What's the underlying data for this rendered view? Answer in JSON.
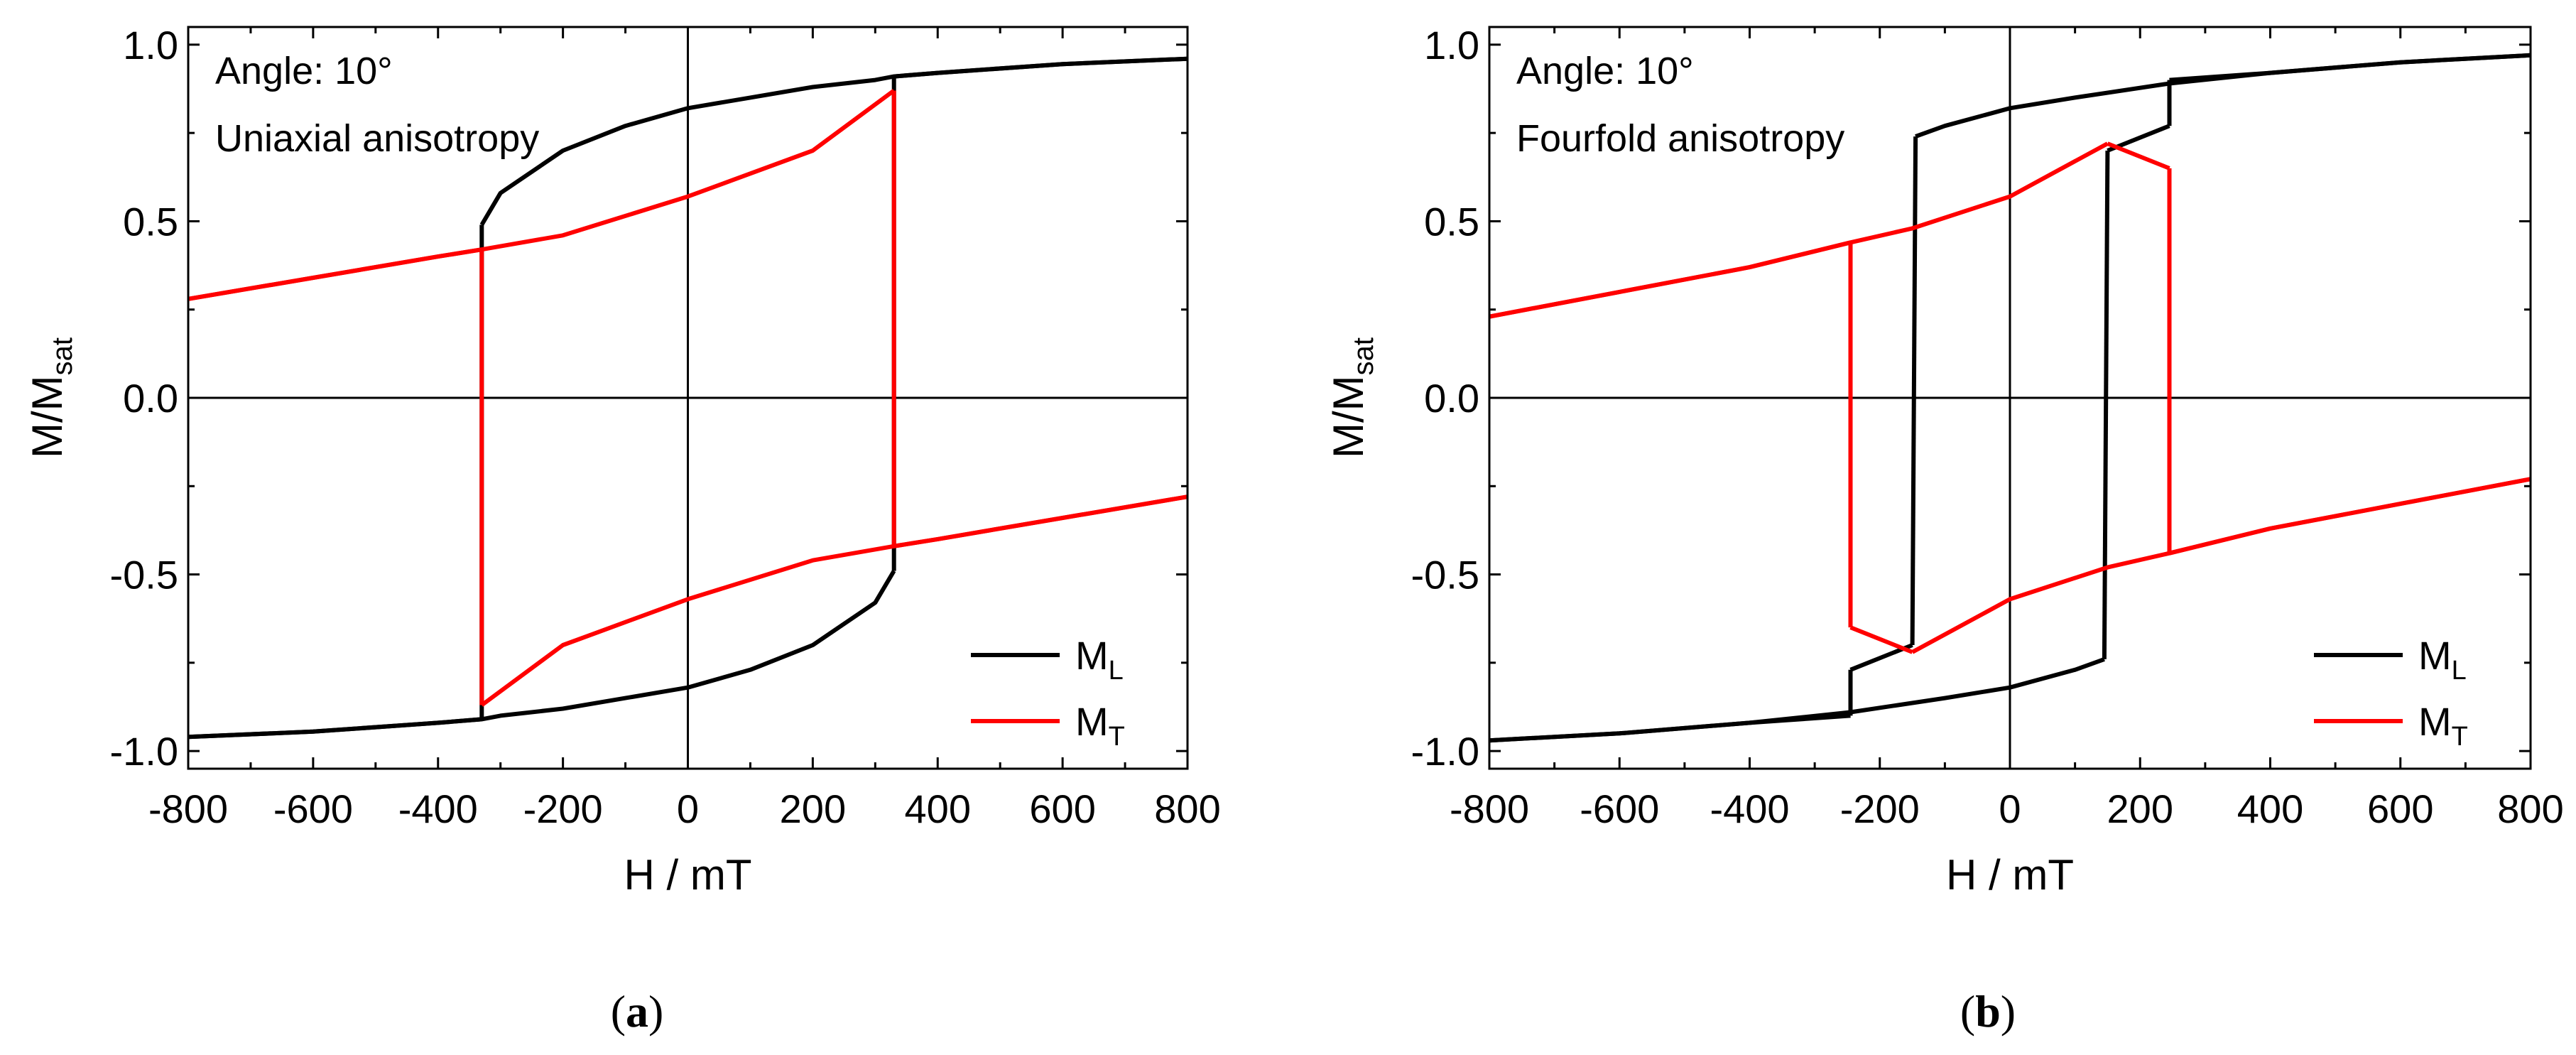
{
  "chart_data": [
    {
      "type": "line",
      "panel": "a",
      "caption_letter": "a",
      "annotation_lines": [
        "Angle: 10°",
        "Uniaxial anisotropy"
      ],
      "xlabel": "H / mT",
      "ylabel": "M/M",
      "ylabel_sub": "sat",
      "xlim": [
        -800,
        800
      ],
      "ylim": [
        -1.05,
        1.05
      ],
      "xticks": [
        -800,
        -600,
        -400,
        -200,
        0,
        200,
        400,
        600,
        800
      ],
      "xtick_labels": [
        "-800",
        "-600",
        "-400",
        "-200",
        "0",
        "200",
        "400",
        "600",
        "800"
      ],
      "yticks": [
        -1.0,
        -0.5,
        0.0,
        0.5,
        1.0
      ],
      "ytick_labels": [
        "-1.0",
        "-0.5",
        "0.0",
        "0.5",
        "1.0"
      ],
      "reference_lines": {
        "x": 0,
        "y": 0
      },
      "legend": {
        "position": "bottom-right"
      },
      "series": [
        {
          "name": "M",
          "name_sub": "L",
          "color": "#000000",
          "branches": [
            {
              "x": [
                800,
                600,
                400,
                330,
                300,
                200,
                100,
                0,
                -100,
                -200,
                -300,
                -330
              ],
              "y": [
                0.96,
                0.945,
                0.92,
                0.91,
                0.9,
                0.88,
                0.85,
                0.82,
                0.77,
                0.7,
                0.58,
                0.49
              ]
            },
            {
              "x": [
                -330,
                -330
              ],
              "y": [
                0.49,
                -0.91
              ]
            },
            {
              "x": [
                -330,
                -400,
                -600,
                -800
              ],
              "y": [
                -0.91,
                -0.92,
                -0.945,
                -0.96
              ]
            },
            {
              "x": [
                -800,
                -600,
                -400,
                -330,
                -300,
                -200,
                -100,
                0,
                100,
                200,
                300,
                330
              ],
              "y": [
                -0.96,
                -0.945,
                -0.92,
                -0.91,
                -0.9,
                -0.88,
                -0.85,
                -0.82,
                -0.77,
                -0.7,
                -0.58,
                -0.49
              ]
            },
            {
              "x": [
                330,
                330
              ],
              "y": [
                -0.49,
                0.91
              ]
            },
            {
              "x": [
                330,
                400,
                600,
                800
              ],
              "y": [
                0.91,
                0.92,
                0.945,
                0.96
              ]
            }
          ]
        },
        {
          "name": "M",
          "name_sub": "T",
          "color": "#ff0000",
          "branches": [
            {
              "x": [
                -800,
                -600,
                -400,
                -330,
                -200,
                0,
                200,
                330
              ],
              "y": [
                0.28,
                0.34,
                0.4,
                0.42,
                0.46,
                0.57,
                0.7,
                0.87
              ]
            },
            {
              "x": [
                330,
                330
              ],
              "y": [
                0.87,
                -0.42
              ]
            },
            {
              "x": [
                330,
                400,
                600,
                800
              ],
              "y": [
                -0.42,
                -0.4,
                -0.34,
                -0.28
              ]
            },
            {
              "x": [
                800,
                600,
                400,
                330,
                200,
                0,
                -200,
                -330
              ],
              "y": [
                -0.28,
                -0.34,
                -0.4,
                -0.42,
                -0.46,
                -0.57,
                -0.7,
                -0.87
              ]
            },
            {
              "x": [
                -330,
                -330
              ],
              "y": [
                -0.87,
                0.42
              ]
            },
            {
              "x": [
                -330,
                -400,
                -600,
                -800
              ],
              "y": [
                0.42,
                0.4,
                0.34,
                0.28
              ]
            }
          ]
        }
      ]
    },
    {
      "type": "line",
      "panel": "b",
      "caption_letter": "b",
      "annotation_lines": [
        "Angle: 10°",
        "Fourfold anisotropy"
      ],
      "xlabel": "H / mT",
      "ylabel": "M/M",
      "ylabel_sub": "sat",
      "xlim": [
        -800,
        800
      ],
      "ylim": [
        -1.05,
        1.05
      ],
      "xticks": [
        -800,
        -600,
        -400,
        -200,
        0,
        200,
        400,
        600,
        800
      ],
      "xtick_labels": [
        "-800",
        "-600",
        "-400",
        "-200",
        "0",
        "200",
        "400",
        "600",
        "800"
      ],
      "yticks": [
        -1.0,
        -0.5,
        0.0,
        0.5,
        1.0
      ],
      "ytick_labels": [
        "-1.0",
        "-0.5",
        "0.0",
        "0.5",
        "1.0"
      ],
      "reference_lines": {
        "x": 0,
        "y": 0
      },
      "legend": {
        "position": "bottom-right"
      },
      "series": [
        {
          "name": "M",
          "name_sub": "L",
          "color": "#000000",
          "branches": [
            {
              "x": [
                800,
                600,
                400,
                245,
                100,
                0,
                -100,
                -145
              ],
              "y": [
                0.97,
                0.95,
                0.92,
                0.89,
                0.85,
                0.82,
                0.77,
                0.74
              ]
            },
            {
              "x": [
                -145,
                -150
              ],
              "y": [
                0.74,
                -0.7
              ]
            },
            {
              "x": [
                -150,
                -245
              ],
              "y": [
                -0.7,
                -0.77
              ]
            },
            {
              "x": [
                -245,
                -245
              ],
              "y": [
                -0.77,
                -0.9
              ]
            },
            {
              "x": [
                -245,
                -400,
                -600,
                -800
              ],
              "y": [
                -0.9,
                -0.92,
                -0.95,
                -0.97
              ]
            },
            {
              "x": [
                -800,
                -600,
                -400,
                -245,
                -100,
                0,
                100,
                145
              ],
              "y": [
                -0.97,
                -0.95,
                -0.92,
                -0.89,
                -0.85,
                -0.82,
                -0.77,
                -0.74
              ]
            },
            {
              "x": [
                145,
                150
              ],
              "y": [
                -0.74,
                0.7
              ]
            },
            {
              "x": [
                150,
                245
              ],
              "y": [
                0.7,
                0.77
              ]
            },
            {
              "x": [
                245,
                245
              ],
              "y": [
                0.77,
                0.9
              ]
            },
            {
              "x": [
                245,
                400,
                600,
                800
              ],
              "y": [
                0.9,
                0.92,
                0.95,
                0.97
              ]
            }
          ]
        },
        {
          "name": "M",
          "name_sub": "T",
          "color": "#ff0000",
          "branches": [
            {
              "x": [
                -800,
                -600,
                -400,
                -245,
                -150,
                0,
                150
              ],
              "y": [
                0.23,
                0.3,
                0.37,
                0.44,
                0.48,
                0.57,
                0.72
              ]
            },
            {
              "x": [
                150,
                245
              ],
              "y": [
                0.72,
                0.65
              ]
            },
            {
              "x": [
                245,
                245
              ],
              "y": [
                0.65,
                -0.44
              ]
            },
            {
              "x": [
                245,
                400,
                600,
                800
              ],
              "y": [
                -0.44,
                -0.37,
                -0.3,
                -0.23
              ]
            },
            {
              "x": [
                800,
                600,
                400,
                245,
                150,
                0,
                -150
              ],
              "y": [
                -0.23,
                -0.3,
                -0.37,
                -0.44,
                -0.48,
                -0.57,
                -0.72
              ]
            },
            {
              "x": [
                -150,
                -245
              ],
              "y": [
                -0.72,
                -0.65
              ]
            },
            {
              "x": [
                -245,
                -245
              ],
              "y": [
                -0.65,
                0.44
              ]
            },
            {
              "x": [
                -245,
                -400,
                -600,
                -800
              ],
              "y": [
                0.44,
                0.37,
                0.3,
                0.23
              ]
            }
          ]
        }
      ]
    }
  ]
}
